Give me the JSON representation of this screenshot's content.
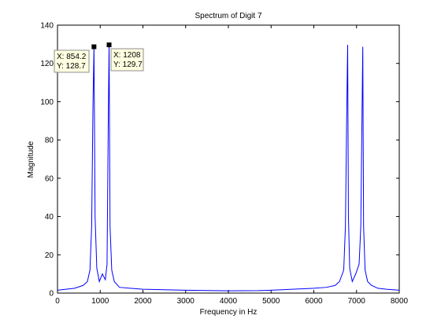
{
  "chart_data": {
    "type": "line",
    "title": "Spectrum of Digit 7",
    "xlabel": "Frequency in Hz",
    "ylabel": "Magnitude",
    "xlim": [
      0,
      8000
    ],
    "ylim": [
      0,
      140
    ],
    "xticks": [
      0,
      1000,
      2000,
      3000,
      4000,
      5000,
      6000,
      7000,
      8000
    ],
    "yticks": [
      0,
      20,
      40,
      60,
      80,
      100,
      120,
      140
    ],
    "grid": false,
    "line_color": "#0000ff",
    "series": [
      {
        "x": [
          0,
          200,
          400,
          600,
          700,
          760,
          800,
          830,
          854.2,
          880,
          920,
          980,
          1050,
          1120,
          1160,
          1190,
          1208,
          1230,
          1270,
          1330,
          1450,
          1700,
          2000,
          3000,
          4000,
          4700,
          5000,
          5500,
          6000,
          6300,
          6500,
          6600,
          6700,
          6740,
          6770,
          6792,
          6810,
          6840,
          6900,
          6980,
          7060,
          7100,
          7130,
          7146,
          7165,
          7200,
          7260,
          7350,
          7500,
          7700,
          8000
        ],
        "y": [
          1.5,
          2,
          2.5,
          4,
          6,
          12,
          35,
          97,
          128.7,
          40,
          13,
          6,
          10,
          7,
          15,
          93,
          129.7,
          35,
          12,
          6,
          3,
          2.5,
          2,
          1.5,
          1.2,
          1.3,
          1.5,
          2,
          2.5,
          3,
          4,
          6,
          12,
          35,
          93,
          129.7,
          40,
          13,
          6,
          10,
          15,
          35,
          97,
          128.7,
          35,
          12,
          6,
          4,
          2.5,
          2,
          1.5
        ]
      }
    ],
    "datatips": [
      {
        "x_label": "X: 854.2",
        "y_label": "Y: 128.7",
        "x": 854.2,
        "y": 128.7
      },
      {
        "x_label": "X: 1208",
        "y_label": "Y: 129.7",
        "x": 1208,
        "y": 129.7
      }
    ]
  }
}
